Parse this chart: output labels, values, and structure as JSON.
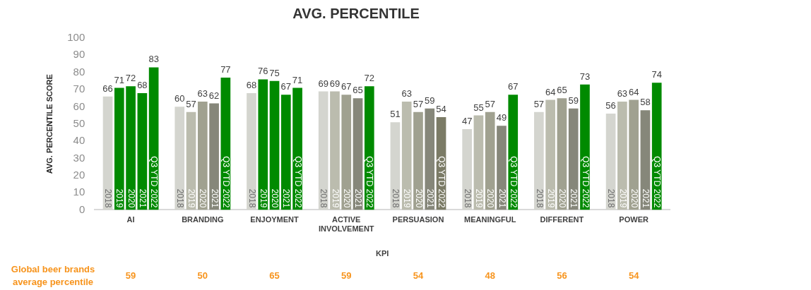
{
  "chart_data": {
    "type": "bar",
    "title": "AVG. PERCENTILE",
    "xlabel": "KPI",
    "ylabel": "AVG. PERCENTILE SCORE",
    "categories": [
      "AI",
      "BRANDING",
      "ENJOYMENT",
      "ACTIVE INVOLVEMENT",
      "PERSUASION",
      "MEANINGFUL",
      "DIFFERENT",
      "POWER"
    ],
    "series": [
      {
        "name": "2018",
        "color": "#d4d5cf",
        "values": [
          66,
          60,
          68,
          69,
          51,
          47,
          57,
          56
        ]
      },
      {
        "name": "2019",
        "color": "#bbbcae",
        "colors": [
          "#008a00",
          null,
          "#008a00",
          null,
          null,
          null,
          null,
          null
        ],
        "values": [
          71,
          57,
          76,
          69,
          63,
          55,
          64,
          63
        ]
      },
      {
        "name": "2020",
        "color": "#a0a190",
        "colors": [
          "#008a00",
          null,
          "#008a00",
          null,
          null,
          null,
          null,
          null
        ],
        "values": [
          72,
          63,
          75,
          67,
          57,
          57,
          65,
          64
        ]
      },
      {
        "name": "2021",
        "color": "#86877a",
        "colors": [
          "#008a00",
          null,
          "#008a00",
          null,
          null,
          null,
          null,
          null
        ],
        "values": [
          68,
          62,
          67,
          65,
          59,
          49,
          59,
          58
        ]
      },
      {
        "name": "Q3 YTD 2022",
        "color": "#008a00",
        "colors": [
          null,
          null,
          null,
          null,
          "#7b7b66",
          null,
          null,
          null
        ],
        "values": [
          83,
          77,
          71,
          72,
          54,
          67,
          73,
          74
        ]
      }
    ],
    "ylim": [
      0,
      100
    ],
    "yticks": [
      0,
      10,
      20,
      30,
      40,
      50,
      60,
      70,
      80,
      90,
      100
    ],
    "grid": false,
    "legend": false,
    "data_labels": true,
    "annotations": [
      "Global beer brands average percentile",
      "59",
      "50",
      "65",
      "59",
      "54",
      "48",
      "56",
      "54"
    ]
  }
}
